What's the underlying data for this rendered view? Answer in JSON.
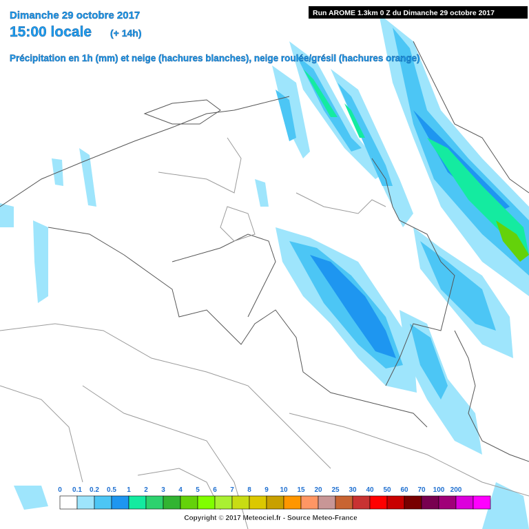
{
  "header": {
    "date": "Dimanche 29 octobre 2017",
    "time": "15:00 locale",
    "offset": "(+ 14h)",
    "subtitle": "Précipitation en 1h (mm) et neige (hachures blanches), neige roulée/grésil (hachures orange)",
    "run": "Run AROME 1.3km 0 Z du Dimanche 29 octobre 2017"
  },
  "legend": {
    "items": [
      {
        "label": 0,
        "color": "#ffffff"
      },
      {
        "label": 0.1,
        "color": "#9ee5fc"
      },
      {
        "label": 0.2,
        "color": "#4cc6f5"
      },
      {
        "label": 0.5,
        "color": "#1e96f0"
      },
      {
        "label": 1,
        "color": "#14eba0"
      },
      {
        "label": 2,
        "color": "#2dd26e"
      },
      {
        "label": 3,
        "color": "#32b432"
      },
      {
        "label": 4,
        "color": "#64d20a"
      },
      {
        "label": 5,
        "color": "#80ff00"
      },
      {
        "label": 6,
        "color": "#aaf032"
      },
      {
        "label": 7,
        "color": "#c8dc14"
      },
      {
        "label": 8,
        "color": "#dcc800"
      },
      {
        "label": 9,
        "color": "#c8a000"
      },
      {
        "label": 10,
        "color": "#ff9600"
      },
      {
        "label": 15,
        "color": "#ff9664"
      },
      {
        "label": 20,
        "color": "#c89696"
      },
      {
        "label": 25,
        "color": "#c86432"
      },
      {
        "label": 30,
        "color": "#c83232"
      },
      {
        "label": 40,
        "color": "#ff0000"
      },
      {
        "label": 50,
        "color": "#c80000"
      },
      {
        "label": 60,
        "color": "#780000"
      },
      {
        "label": 70,
        "color": "#780050"
      },
      {
        "label": 100,
        "color": "#a00078"
      },
      {
        "label": 200,
        "color": "#dc00dc"
      }
    ],
    "last_color": "#ff00ff"
  },
  "footer": {
    "copyright": "Copyright © 2017 Meteociel.fr - Source Meteo-France"
  }
}
